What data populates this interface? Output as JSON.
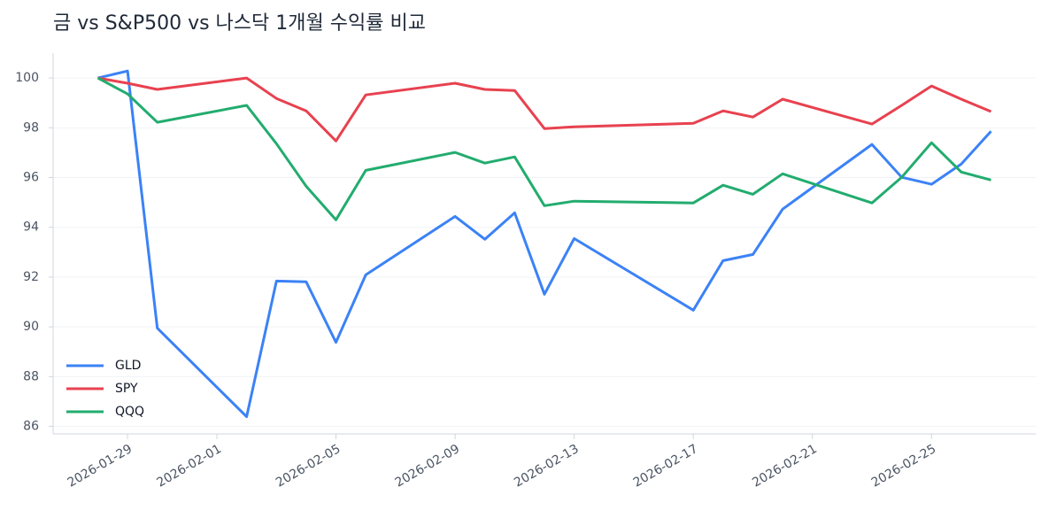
{
  "chart_data": {
    "type": "line",
    "title": "금 vs S&P500 vs 나스닥 1개월 수익률 비교",
    "x": [
      "2026-01-28",
      "2026-01-29",
      "2026-01-30",
      "2026-02-02",
      "2026-02-03",
      "2026-02-04",
      "2026-02-05",
      "2026-02-06",
      "2026-02-09",
      "2026-02-10",
      "2026-02-11",
      "2026-02-12",
      "2026-02-13",
      "2026-02-17",
      "2026-02-18",
      "2026-02-19",
      "2026-02-20",
      "2026-02-23",
      "2026-02-24",
      "2026-02-25",
      "2026-02-26",
      "2026-02-27"
    ],
    "series": [
      {
        "name": "GLD",
        "color": "#3b82f6",
        "values": [
          100,
          100.28,
          89.95,
          86.39,
          91.84,
          91.81,
          89.38,
          92.09,
          94.44,
          93.52,
          94.58,
          91.31,
          93.55,
          90.67,
          92.66,
          92.91,
          94.73,
          97.33,
          96.01,
          95.73,
          96.54,
          97.86
        ]
      },
      {
        "name": "SPY",
        "color": "#e8414f",
        "values": [
          100,
          99.79,
          99.54,
          100,
          99.18,
          98.68,
          97.47,
          99.32,
          99.79,
          99.54,
          99.5,
          97.97,
          98.04,
          98.18,
          98.68,
          98.43,
          99.15,
          98.15,
          98.9,
          99.68,
          99.15,
          98.65
        ]
      },
      {
        "name": "QQQ",
        "color": "#22ac6e",
        "values": [
          100,
          99.36,
          98.22,
          98.9,
          97.36,
          95.65,
          94.3,
          96.29,
          97.01,
          96.58,
          96.83,
          94.87,
          95.05,
          94.98,
          95.69,
          95.33,
          96.15,
          94.98,
          96.01,
          97.4,
          96.22,
          95.9
        ]
      }
    ],
    "xticks": [
      "2026-01-29",
      "2026-02-01",
      "2026-02-05",
      "2026-02-09",
      "2026-02-13",
      "2026-02-17",
      "2026-02-21",
      "2026-02-25"
    ],
    "ylim": [
      85.7,
      101.0
    ],
    "yticks": [
      86,
      88,
      90,
      92,
      94,
      96,
      98,
      100
    ],
    "grid": true,
    "legend": "lower left"
  }
}
